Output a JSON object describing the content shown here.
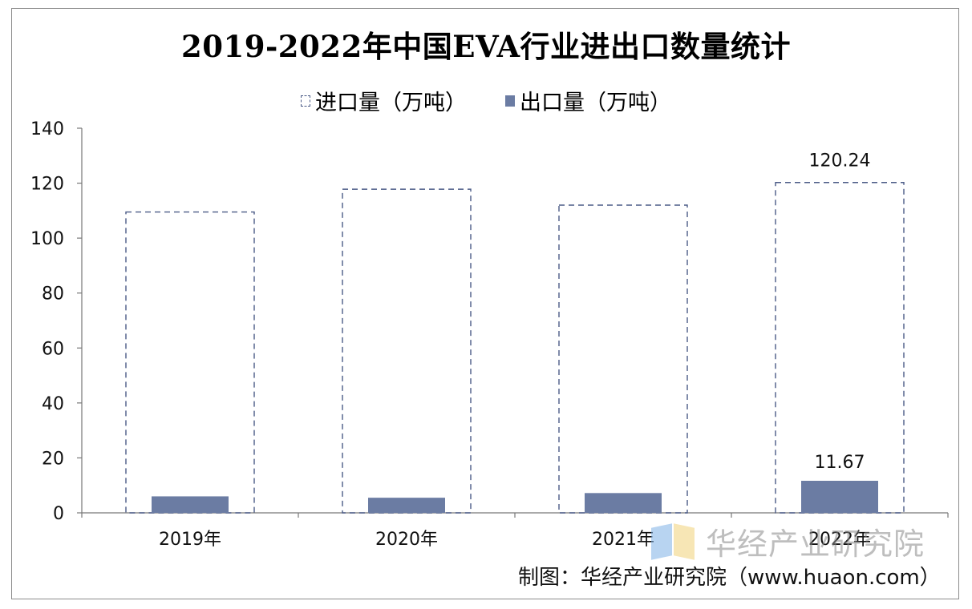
{
  "chart_data": {
    "type": "bar",
    "title": "2019-2022年中国EVA行业进出口数量统计",
    "categories": [
      "2019年",
      "2020年",
      "2021年",
      "2022年"
    ],
    "series": [
      {
        "name": "进口量（万吨）",
        "values": [
          109.5,
          117.8,
          112.0,
          120.24
        ],
        "style": "dashed-outline",
        "color": "#4a5a86"
      },
      {
        "name": "出口量（万吨）",
        "values": [
          6.0,
          5.5,
          7.2,
          11.67
        ],
        "style": "solid",
        "color": "#6b7ca3"
      }
    ],
    "data_labels": {
      "import_2022": "120.24",
      "export_2022": "11.67"
    },
    "ylim": [
      0,
      140
    ],
    "yticks": [
      "0",
      "20",
      "40",
      "60",
      "80",
      "100",
      "120",
      "140"
    ],
    "legend": "top-center",
    "grid": false
  },
  "watermark": {
    "text": "华经产业研究院"
  },
  "source": {
    "text": "制图：华经产业研究院（www.huaon.com）"
  }
}
